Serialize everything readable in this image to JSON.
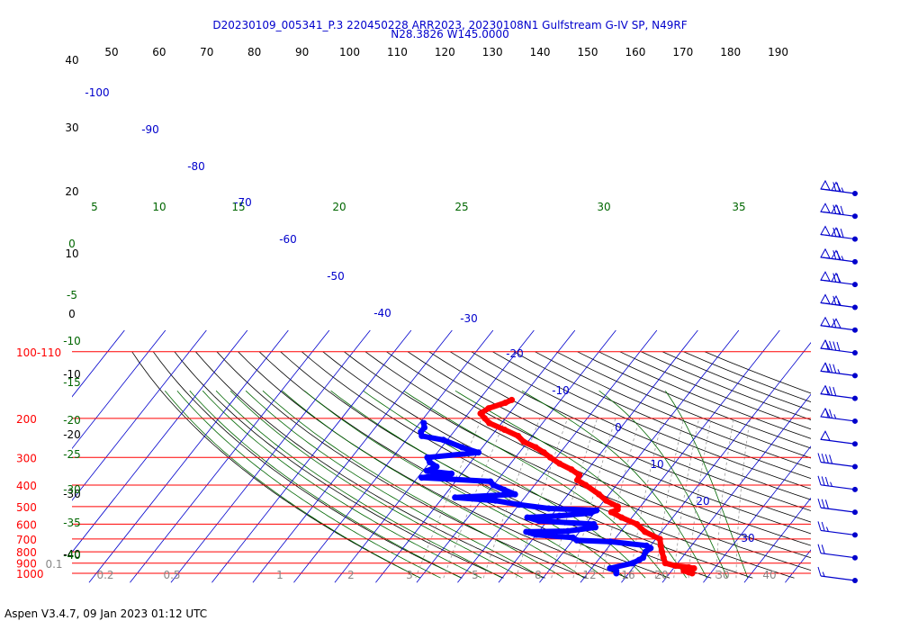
{
  "header": {
    "title_line1": "D20230109_005341_P.3 220450228 ARR2023, 20230108N1 Gulfstream G-IV SP, N49RF",
    "title_line2": "N28.3826 W145.0000"
  },
  "footer": {
    "text": "Aspen V3.4.7, 09 Jan 2023  01:12 UTC"
  },
  "chart_data": {
    "type": "skew-t",
    "title": "D20230109_005341_P.3 220450228 ARR2023, 20230108N1 Gulfstream G-IV SP, N49RF",
    "subtitle": "N28.3826 W145.0000",
    "pressure_levels": [
      {
        "value": 1000,
        "label": "1000"
      },
      {
        "value": 900,
        "label": "900"
      },
      {
        "value": 800,
        "label": "800"
      },
      {
        "value": 700,
        "label": "700"
      },
      {
        "value": 600,
        "label": "600"
      },
      {
        "value": 500,
        "label": "500"
      },
      {
        "value": 400,
        "label": "400"
      },
      {
        "value": 300,
        "label": "300"
      },
      {
        "value": 200,
        "label": "200"
      },
      {
        "value": 100,
        "label": "100-110"
      }
    ],
    "pressure_range": [
      1000,
      100
    ],
    "top_scale_labels": [
      "50",
      "60",
      "70",
      "80",
      "90",
      "100",
      "110",
      "120",
      "130",
      "140",
      "150",
      "160",
      "170",
      "180",
      "190"
    ],
    "isotherm_labels": [
      {
        "t": 30,
        "label": "30"
      },
      {
        "t": 20,
        "label": "20"
      },
      {
        "t": 10,
        "label": "10"
      },
      {
        "t": 0,
        "label": "0"
      },
      {
        "t": -10,
        "label": "-10"
      },
      {
        "t": -20,
        "label": "-20"
      },
      {
        "t": -30,
        "label": "-30"
      },
      {
        "t": -40,
        "label": "-40"
      },
      {
        "t": -50,
        "label": "-50"
      },
      {
        "t": -60,
        "label": "-60"
      },
      {
        "t": -70,
        "label": "-70"
      },
      {
        "t": -80,
        "label": "-80"
      },
      {
        "t": -90,
        "label": "-90"
      },
      {
        "t": -100,
        "label": "-100"
      }
    ],
    "left_black_labels": [
      "40",
      "30",
      "20",
      "10",
      "0",
      "-10",
      "-20",
      "-30",
      "-40"
    ],
    "green_left_labels": [
      "0",
      "-5",
      "-10",
      "-15",
      "-20",
      "-25",
      "-30",
      "-35",
      "-40"
    ],
    "green_top_labels": [
      "5",
      "10",
      "15",
      "20",
      "25",
      "30",
      "35"
    ],
    "mixing_ratio_labels": [
      "0.1",
      "0.2",
      "0.5",
      "1",
      "2",
      "3",
      "5",
      "8",
      "12",
      "16",
      "20",
      "30",
      "40"
    ],
    "temperature": [
      {
        "p": 1000,
        "t": 25.5
      },
      {
        "p": 990,
        "t": 24.5
      },
      {
        "p": 975,
        "t": 23.0
      },
      {
        "p": 950,
        "t": 25.0
      },
      {
        "p": 940,
        "t": 23.5
      },
      {
        "p": 925,
        "t": 20.0
      },
      {
        "p": 900,
        "t": 17.0
      },
      {
        "p": 850,
        "t": 15.5
      },
      {
        "p": 800,
        "t": 14.0
      },
      {
        "p": 750,
        "t": 12.5
      },
      {
        "p": 700,
        "t": 11.0
      },
      {
        "p": 650,
        "t": 6.0
      },
      {
        "p": 600,
        "t": 2.5
      },
      {
        "p": 560,
        "t": -2.5
      },
      {
        "p": 530,
        "t": -6.0
      },
      {
        "p": 515,
        "t": -5.0
      },
      {
        "p": 500,
        "t": -5.5
      },
      {
        "p": 470,
        "t": -9.5
      },
      {
        "p": 440,
        "t": -12.5
      },
      {
        "p": 400,
        "t": -17.5
      },
      {
        "p": 380,
        "t": -20.5
      },
      {
        "p": 360,
        "t": -21.0
      },
      {
        "p": 340,
        "t": -24.0
      },
      {
        "p": 320,
        "t": -28.0
      },
      {
        "p": 300,
        "t": -31.5
      },
      {
        "p": 285,
        "t": -34.0
      },
      {
        "p": 270,
        "t": -37.0
      },
      {
        "p": 255,
        "t": -41.0
      },
      {
        "p": 240,
        "t": -43.5
      },
      {
        "p": 225,
        "t": -48.0
      },
      {
        "p": 210,
        "t": -53.0
      },
      {
        "p": 200,
        "t": -55.0
      },
      {
        "p": 190,
        "t": -57.0
      },
      {
        "p": 180,
        "t": -56.0
      },
      {
        "p": 170,
        "t": -53.0
      },
      {
        "p": 165,
        "t": -52.0
      }
    ],
    "dewpoint": [
      {
        "p": 1000,
        "t": 7.0
      },
      {
        "p": 975,
        "t": 6.5
      },
      {
        "p": 960,
        "t": 6.0
      },
      {
        "p": 950,
        "t": 4.5
      },
      {
        "p": 900,
        "t": 9.0
      },
      {
        "p": 870,
        "t": 10.0
      },
      {
        "p": 850,
        "t": 10.5
      },
      {
        "p": 800,
        "t": 10.0
      },
      {
        "p": 770,
        "t": 10.5
      },
      {
        "p": 750,
        "t": 9.0
      },
      {
        "p": 720,
        "t": -0.5
      },
      {
        "p": 710,
        "t": -9.0
      },
      {
        "p": 690,
        "t": -10.5
      },
      {
        "p": 670,
        "t": -20.0
      },
      {
        "p": 650,
        "t": -23.0
      },
      {
        "p": 645,
        "t": -13.0
      },
      {
        "p": 620,
        "t": -7.0
      },
      {
        "p": 600,
        "t": -8.0
      },
      {
        "p": 580,
        "t": -22.0
      },
      {
        "p": 560,
        "t": -25.5
      },
      {
        "p": 550,
        "t": -18.0
      },
      {
        "p": 535,
        "t": -11.0
      },
      {
        "p": 520,
        "t": -10.0
      },
      {
        "p": 510,
        "t": -22.0
      },
      {
        "p": 490,
        "t": -30.0
      },
      {
        "p": 470,
        "t": -36.5
      },
      {
        "p": 455,
        "t": -47.0
      },
      {
        "p": 440,
        "t": -33.0
      },
      {
        "p": 420,
        "t": -36.5
      },
      {
        "p": 400,
        "t": -40.0
      },
      {
        "p": 385,
        "t": -41.5
      },
      {
        "p": 370,
        "t": -59.0
      },
      {
        "p": 355,
        "t": -52.5
      },
      {
        "p": 345,
        "t": -59.0
      },
      {
        "p": 330,
        "t": -57.5
      },
      {
        "p": 315,
        "t": -60.0
      },
      {
        "p": 300,
        "t": -61.5
      },
      {
        "p": 285,
        "t": -50.0
      },
      {
        "p": 270,
        "t": -55.0
      },
      {
        "p": 250,
        "t": -61.0
      },
      {
        "p": 240,
        "t": -67.0
      },
      {
        "p": 230,
        "t": -68.0
      },
      {
        "p": 220,
        "t": -68.0
      },
      {
        "p": 210,
        "t": -69.0
      }
    ],
    "wind_barbs": [
      {
        "p": 1000,
        "kt": 15
      },
      {
        "p": 950,
        "kt": 20
      },
      {
        "p": 900,
        "kt": 25
      },
      {
        "p": 850,
        "kt": 30
      },
      {
        "p": 800,
        "kt": 35
      },
      {
        "p": 750,
        "kt": 40
      },
      {
        "p": 700,
        "kt": 50
      },
      {
        "p": 600,
        "kt": 75
      },
      {
        "p": 550,
        "kt": 80
      },
      {
        "p": 500,
        "kt": 85
      },
      {
        "p": 450,
        "kt": 90
      },
      {
        "p": 400,
        "kt": 110
      },
      {
        "p": 350,
        "kt": 115
      },
      {
        "p": 300,
        "kt": 120
      },
      {
        "p": 270,
        "kt": 125
      },
      {
        "p": 250,
        "kt": 130
      },
      {
        "p": 230,
        "kt": 130
      },
      {
        "p": 210,
        "kt": 125
      }
    ],
    "series_colors": {
      "temperature": "#ff0000",
      "dewpoint": "#0000ff"
    }
  }
}
